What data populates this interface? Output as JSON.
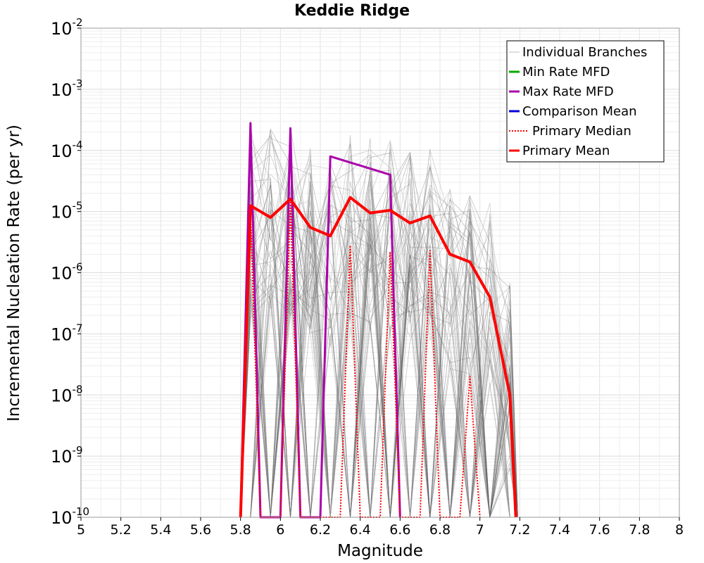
{
  "chart_data": {
    "type": "line",
    "title": "Keddie Ridge",
    "xlabel": "Magnitude",
    "ylabel": "Incremental Nucleation Rate (per yr)",
    "xlim": [
      5,
      8
    ],
    "ylim": [
      1e-10,
      0.01
    ],
    "y_scale": "log",
    "grid": true,
    "legend_position": "top-right",
    "x_ticks": [
      "5",
      "5.2",
      "5.4",
      "5.6",
      "5.8",
      "6",
      "6.2",
      "6.4",
      "6.6",
      "6.8",
      "7",
      "7.2",
      "7.4",
      "7.6",
      "7.8",
      "8"
    ],
    "y_ticks": [
      {
        "base": "10",
        "exp": "-10",
        "value": 1e-10
      },
      {
        "base": "10",
        "exp": "-9",
        "value": 1e-09
      },
      {
        "base": "10",
        "exp": "-8",
        "value": 1e-08
      },
      {
        "base": "10",
        "exp": "-7",
        "value": 1e-07
      },
      {
        "base": "10",
        "exp": "-6",
        "value": 1e-06
      },
      {
        "base": "10",
        "exp": "-5",
        "value": 1e-05
      },
      {
        "base": "10",
        "exp": "-4",
        "value": 0.0001
      },
      {
        "base": "10",
        "exp": "-3",
        "value": 0.001
      },
      {
        "base": "10",
        "exp": "-2",
        "value": 0.01
      }
    ],
    "series": [
      {
        "name": "Individual Branches",
        "color": "#555555",
        "style": "thin",
        "x": [
          5.85,
          5.95,
          6.05,
          6.15,
          6.25,
          6.35,
          6.45,
          6.55,
          6.65,
          6.75,
          6.85,
          6.95,
          7.05,
          7.15
        ],
        "values": [
          0.00028,
          0.00026,
          0.00024,
          0.00011,
          9e-05,
          0.00018,
          0.00018,
          0.00016,
          0.00012,
          0.00011,
          3.5e-05,
          2.2e-05,
          1.8e-05,
          7e-07
        ]
      },
      {
        "name": "Min Rate MFD",
        "color": "#00aa00",
        "x": [],
        "values": []
      },
      {
        "name": "Max Rate MFD",
        "color": "#aa00aa",
        "x": [
          5.8,
          5.85,
          5.9,
          6.0,
          6.05,
          6.1,
          6.2,
          6.25,
          6.55,
          6.6
        ],
        "values": [
          1e-10,
          0.00028,
          1e-10,
          1e-10,
          0.00023,
          1e-10,
          1e-10,
          8e-05,
          4e-05,
          1e-10
        ]
      },
      {
        "name": "Comparison Mean",
        "color": "#0000dd",
        "x": [],
        "values": []
      },
      {
        "name": "Primary Median",
        "color": "#ff0000",
        "style": "dotted",
        "x": [
          5.8,
          5.85,
          5.9,
          6.0,
          6.05,
          6.1,
          6.3,
          6.35,
          6.4,
          6.5,
          6.55,
          6.6,
          6.7,
          6.75,
          6.8,
          6.9,
          6.95,
          7.0
        ],
        "values": [
          1e-10,
          1e-05,
          1e-10,
          1e-10,
          1.4e-05,
          1e-10,
          1e-10,
          2.8e-06,
          1e-10,
          1e-10,
          2.2e-06,
          1e-10,
          1e-10,
          2.3e-06,
          1e-10,
          1e-10,
          2e-08,
          1e-10
        ]
      },
      {
        "name": "Primary Mean",
        "color": "#ff0000",
        "style": "thick",
        "x": [
          5.8,
          5.85,
          5.95,
          6.05,
          6.15,
          6.25,
          6.35,
          6.45,
          6.55,
          6.65,
          6.75,
          6.85,
          6.95,
          7.05,
          7.15,
          7.18
        ],
        "values": [
          1e-10,
          1.25e-05,
          8e-06,
          1.6e-05,
          5.5e-06,
          4e-06,
          1.7e-05,
          9.5e-06,
          1.05e-05,
          6.5e-06,
          8.5e-06,
          2e-06,
          1.5e-06,
          4e-07,
          1e-08,
          1e-10
        ]
      }
    ]
  }
}
